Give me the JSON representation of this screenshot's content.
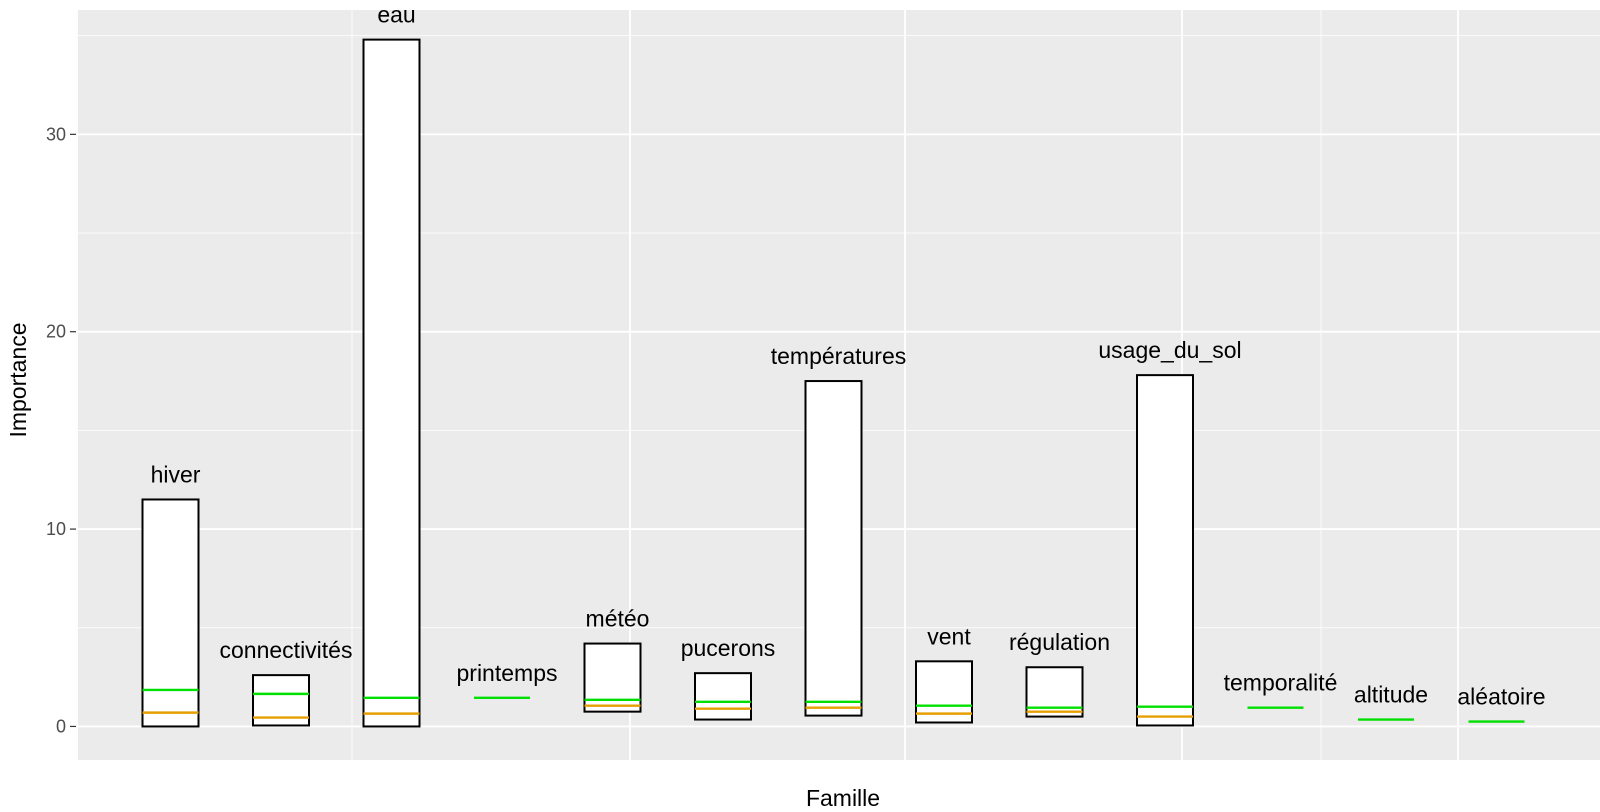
{
  "chart_data": {
    "type": "bar",
    "xlabel": "Famille",
    "ylabel": "Importance",
    "ylim": [
      -1.7,
      36.3
    ],
    "yticks": [
      0,
      10,
      20,
      30
    ],
    "grid": true,
    "colors": {
      "panel_bg": "#ebebeb",
      "grid": "#ffffff",
      "bar_fill": "#ffffff",
      "bar_stroke": "#000000",
      "green_line": "#00e000",
      "orange_line": "#e69f00"
    },
    "categories": [
      "hiver",
      "connectivités",
      "eau",
      "printemps",
      "météo",
      "pucerons",
      "températures",
      "vent",
      "régulation",
      "usage_du_sol",
      "temporalité",
      "altitude",
      "aléatoire"
    ],
    "bar_low": [
      0.0,
      0.05,
      0.0,
      null,
      0.75,
      0.35,
      0.55,
      0.2,
      0.5,
      0.05,
      null,
      null,
      null
    ],
    "bar_high": [
      11.5,
      2.6,
      34.8,
      null,
      4.2,
      2.7,
      17.5,
      3.3,
      3.0,
      17.8,
      null,
      null,
      null
    ],
    "series": [
      {
        "name": "",
        "style": "green",
        "values": [
          1.85,
          1.65,
          1.45,
          1.45,
          1.35,
          1.25,
          1.25,
          1.05,
          0.95,
          1.0,
          0.95,
          0.35,
          0.25
        ]
      },
      {
        "name": "",
        "style": "orange",
        "values": [
          0.7,
          0.45,
          0.65,
          null,
          1.05,
          0.9,
          0.95,
          0.65,
          0.75,
          0.5,
          null,
          null,
          null
        ]
      }
    ]
  }
}
